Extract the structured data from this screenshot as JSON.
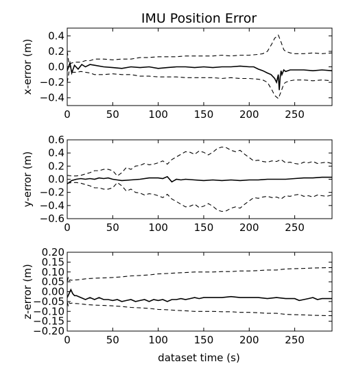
{
  "figure": {
    "title": "IMU Position Error",
    "xlabel": "dataset time (s)"
  },
  "chart_data": [
    {
      "type": "line",
      "title": "IMU Position Error",
      "ylabel": "x-error (m)",
      "xlabel": "",
      "xlim": [
        0,
        291
      ],
      "ylim": [
        -0.5,
        0.5
      ],
      "xticks": [
        0,
        50,
        100,
        150,
        200,
        250
      ],
      "yticks": [
        -0.4,
        -0.2,
        0.0,
        0.2,
        0.4
      ],
      "ytick_labels": [
        "−0.4",
        "−0.2",
        "0.0",
        "0.2",
        "0.4"
      ],
      "grid": false,
      "series": [
        {
          "style": "solid",
          "x": [
            0,
            3,
            5,
            8,
            12,
            16,
            20,
            25,
            30,
            40,
            50,
            60,
            70,
            80,
            90,
            100,
            110,
            120,
            130,
            140,
            150,
            160,
            170,
            180,
            190,
            200,
            205,
            210,
            215,
            220,
            224,
            228,
            230,
            232,
            233,
            234,
            235,
            236,
            238,
            240,
            245,
            250,
            260,
            270,
            280,
            291
          ],
          "y": [
            -0.05,
            0.05,
            -0.08,
            0.02,
            -0.03,
            0.03,
            0.0,
            0.03,
            0.02,
            0.0,
            -0.01,
            -0.02,
            0.0,
            -0.01,
            0.0,
            -0.02,
            -0.01,
            0.0,
            0.0,
            -0.01,
            0.0,
            -0.01,
            0.0,
            0.0,
            0.01,
            0.0,
            0.0,
            -0.03,
            -0.05,
            -0.08,
            -0.1,
            -0.15,
            -0.2,
            -0.1,
            -0.3,
            -0.14,
            -0.05,
            -0.1,
            -0.04,
            -0.06,
            -0.04,
            -0.04,
            -0.04,
            -0.05,
            -0.04,
            -0.05
          ]
        },
        {
          "style": "dashed",
          "x": [
            0,
            2,
            5,
            10,
            15,
            20,
            25,
            30,
            40,
            50,
            60,
            70,
            80,
            90,
            100,
            110,
            120,
            130,
            140,
            150,
            160,
            170,
            180,
            190,
            200,
            210,
            215,
            220,
            225,
            228,
            232,
            235,
            238,
            240,
            245,
            250,
            260,
            270,
            280,
            291
          ],
          "y": [
            0.2,
            0.03,
            0.05,
            0.06,
            0.06,
            0.08,
            0.08,
            0.1,
            0.1,
            0.09,
            0.1,
            0.1,
            0.12,
            0.12,
            0.13,
            0.13,
            0.13,
            0.14,
            0.14,
            0.14,
            0.14,
            0.15,
            0.14,
            0.15,
            0.15,
            0.16,
            0.17,
            0.2,
            0.3,
            0.37,
            0.41,
            0.32,
            0.22,
            0.2,
            0.18,
            0.17,
            0.17,
            0.18,
            0.17,
            0.18
          ]
        },
        {
          "style": "dashed",
          "x": [
            0,
            2,
            5,
            10,
            15,
            20,
            25,
            30,
            40,
            50,
            60,
            70,
            80,
            90,
            100,
            110,
            120,
            130,
            140,
            150,
            160,
            170,
            180,
            190,
            200,
            210,
            215,
            220,
            225,
            228,
            232,
            235,
            238,
            240,
            245,
            250,
            260,
            270,
            280,
            291
          ],
          "y": [
            -0.2,
            -0.06,
            -0.07,
            -0.07,
            -0.06,
            -0.07,
            -0.08,
            -0.1,
            -0.1,
            -0.09,
            -0.1,
            -0.1,
            -0.12,
            -0.12,
            -0.13,
            -0.13,
            -0.13,
            -0.14,
            -0.14,
            -0.14,
            -0.14,
            -0.15,
            -0.14,
            -0.15,
            -0.15,
            -0.16,
            -0.17,
            -0.2,
            -0.3,
            -0.37,
            -0.41,
            -0.32,
            -0.22,
            -0.2,
            -0.18,
            -0.17,
            -0.17,
            -0.18,
            -0.17,
            -0.18
          ]
        }
      ]
    },
    {
      "type": "line",
      "title": "",
      "ylabel": "y-error (m)",
      "xlabel": "",
      "xlim": [
        0,
        291
      ],
      "ylim": [
        -0.6,
        0.6
      ],
      "xticks": [
        0,
        50,
        100,
        150,
        200,
        250
      ],
      "yticks": [
        -0.6,
        -0.4,
        -0.2,
        0.0,
        0.2,
        0.4,
        0.6
      ],
      "ytick_labels": [
        "−0.6",
        "−0.4",
        "−0.2",
        "0.0",
        "0.2",
        "0.4",
        "0.6"
      ],
      "grid": false,
      "series": [
        {
          "style": "solid",
          "x": [
            0,
            5,
            10,
            15,
            20,
            25,
            30,
            35,
            40,
            45,
            50,
            55,
            60,
            70,
            80,
            90,
            100,
            105,
            110,
            115,
            120,
            125,
            130,
            140,
            150,
            160,
            170,
            180,
            190,
            200,
            210,
            220,
            230,
            240,
            250,
            260,
            270,
            280,
            291
          ],
          "y": [
            -0.07,
            -0.02,
            0.0,
            0.01,
            0.0,
            0.01,
            0.0,
            0.02,
            0.01,
            0.02,
            0.0,
            -0.01,
            -0.02,
            -0.01,
            0.0,
            0.02,
            0.02,
            0.01,
            0.04,
            -0.04,
            0.0,
            -0.01,
            0.0,
            -0.01,
            -0.02,
            -0.01,
            -0.02,
            -0.01,
            -0.02,
            -0.01,
            -0.01,
            0.0,
            0.0,
            0.0,
            0.01,
            0.02,
            0.02,
            0.03,
            0.03
          ]
        },
        {
          "style": "dashed",
          "x": [
            0,
            5,
            10,
            15,
            20,
            25,
            30,
            35,
            40,
            45,
            50,
            55,
            60,
            65,
            70,
            75,
            80,
            85,
            90,
            95,
            100,
            105,
            110,
            115,
            120,
            125,
            130,
            135,
            140,
            145,
            150,
            155,
            160,
            165,
            170,
            175,
            180,
            185,
            190,
            195,
            200,
            205,
            210,
            215,
            220,
            225,
            230,
            235,
            240,
            245,
            250,
            255,
            260,
            265,
            270,
            275,
            280,
            285,
            291
          ],
          "y": [
            0.06,
            0.05,
            0.05,
            0.06,
            0.08,
            0.1,
            0.13,
            0.13,
            0.15,
            0.15,
            0.13,
            0.05,
            0.1,
            0.18,
            0.15,
            0.2,
            0.21,
            0.24,
            0.22,
            0.23,
            0.25,
            0.28,
            0.23,
            0.3,
            0.34,
            0.38,
            0.42,
            0.41,
            0.38,
            0.43,
            0.41,
            0.37,
            0.41,
            0.47,
            0.49,
            0.48,
            0.44,
            0.42,
            0.44,
            0.38,
            0.33,
            0.28,
            0.29,
            0.27,
            0.26,
            0.28,
            0.27,
            0.3,
            0.25,
            0.26,
            0.24,
            0.23,
            0.26,
            0.25,
            0.27,
            0.24,
            0.25,
            0.26,
            0.24
          ]
        },
        {
          "style": "dashed",
          "x": [
            0,
            5,
            10,
            15,
            20,
            25,
            30,
            35,
            40,
            45,
            50,
            55,
            60,
            65,
            70,
            75,
            80,
            85,
            90,
            95,
            100,
            105,
            110,
            115,
            120,
            125,
            130,
            135,
            140,
            145,
            150,
            155,
            160,
            165,
            170,
            175,
            180,
            185,
            190,
            195,
            200,
            205,
            210,
            215,
            220,
            225,
            230,
            235,
            240,
            245,
            250,
            255,
            260,
            265,
            270,
            275,
            280,
            285,
            291
          ],
          "y": [
            -0.06,
            -0.05,
            -0.05,
            -0.06,
            -0.08,
            -0.1,
            -0.13,
            -0.13,
            -0.15,
            -0.15,
            -0.13,
            -0.05,
            -0.1,
            -0.18,
            -0.15,
            -0.2,
            -0.21,
            -0.24,
            -0.22,
            -0.23,
            -0.25,
            -0.28,
            -0.23,
            -0.3,
            -0.34,
            -0.38,
            -0.42,
            -0.41,
            -0.38,
            -0.43,
            -0.41,
            -0.37,
            -0.41,
            -0.47,
            -0.49,
            -0.48,
            -0.44,
            -0.42,
            -0.44,
            -0.38,
            -0.33,
            -0.28,
            -0.29,
            -0.27,
            -0.26,
            -0.28,
            -0.27,
            -0.3,
            -0.25,
            -0.26,
            -0.24,
            -0.23,
            -0.26,
            -0.25,
            -0.27,
            -0.24,
            -0.25,
            -0.26,
            -0.24
          ]
        }
      ]
    },
    {
      "type": "line",
      "title": "",
      "ylabel": "z-error (m)",
      "xlabel": "dataset time (s)",
      "xlim": [
        0,
        291
      ],
      "ylim": [
        -0.2,
        0.2
      ],
      "xticks": [
        0,
        50,
        100,
        150,
        200,
        250
      ],
      "yticks": [
        -0.2,
        -0.15,
        -0.1,
        -0.05,
        0.0,
        0.05,
        0.1,
        0.15,
        0.2
      ],
      "ytick_labels": [
        "−0.20",
        "−0.15",
        "−0.10",
        "−0.05",
        "0.00",
        "0.05",
        "0.10",
        "0.15",
        "0.20"
      ],
      "grid": false,
      "series": [
        {
          "style": "solid",
          "x": [
            0,
            2,
            4,
            6,
            8,
            10,
            15,
            20,
            25,
            30,
            35,
            40,
            45,
            50,
            55,
            60,
            65,
            70,
            75,
            80,
            85,
            90,
            95,
            100,
            105,
            110,
            115,
            120,
            125,
            130,
            135,
            140,
            145,
            150,
            160,
            170,
            180,
            190,
            200,
            210,
            220,
            230,
            240,
            250,
            255,
            260,
            265,
            270,
            275,
            280,
            291
          ],
          "y": [
            -0.03,
            -0.01,
            0.01,
            -0.01,
            -0.02,
            -0.02,
            -0.03,
            -0.04,
            -0.03,
            -0.04,
            -0.03,
            -0.04,
            -0.04,
            -0.045,
            -0.04,
            -0.05,
            -0.045,
            -0.04,
            -0.05,
            -0.045,
            -0.04,
            -0.05,
            -0.04,
            -0.045,
            -0.04,
            -0.05,
            -0.04,
            -0.04,
            -0.035,
            -0.04,
            -0.035,
            -0.03,
            -0.035,
            -0.03,
            -0.03,
            -0.03,
            -0.025,
            -0.03,
            -0.03,
            -0.03,
            -0.035,
            -0.03,
            -0.035,
            -0.035,
            -0.045,
            -0.04,
            -0.035,
            -0.03,
            -0.04,
            -0.035,
            -0.035
          ]
        },
        {
          "style": "dashed",
          "x": [
            0,
            1,
            2,
            3,
            5,
            8,
            10,
            15,
            20,
            30,
            40,
            50,
            60,
            70,
            80,
            90,
            100,
            110,
            120,
            130,
            140,
            150,
            160,
            170,
            180,
            190,
            200,
            210,
            220,
            230,
            240,
            250,
            260,
            270,
            280,
            291
          ],
          "y": [
            0.05,
            0.07,
            0.055,
            0.06,
            0.058,
            0.06,
            0.06,
            0.062,
            0.065,
            0.068,
            0.07,
            0.072,
            0.075,
            0.08,
            0.082,
            0.085,
            0.09,
            0.092,
            0.095,
            0.097,
            0.1,
            0.1,
            0.1,
            0.102,
            0.102,
            0.105,
            0.105,
            0.107,
            0.11,
            0.11,
            0.115,
            0.117,
            0.118,
            0.12,
            0.121,
            0.122
          ]
        },
        {
          "style": "dashed",
          "x": [
            0,
            1,
            2,
            3,
            5,
            8,
            10,
            15,
            20,
            30,
            40,
            50,
            60,
            70,
            80,
            90,
            100,
            110,
            120,
            130,
            140,
            150,
            160,
            170,
            180,
            190,
            200,
            210,
            220,
            230,
            240,
            250,
            260,
            270,
            280,
            291
          ],
          "y": [
            -0.05,
            -0.07,
            -0.055,
            -0.06,
            -0.058,
            -0.06,
            -0.06,
            -0.062,
            -0.065,
            -0.068,
            -0.07,
            -0.072,
            -0.075,
            -0.08,
            -0.082,
            -0.085,
            -0.09,
            -0.092,
            -0.095,
            -0.097,
            -0.1,
            -0.1,
            -0.1,
            -0.102,
            -0.102,
            -0.105,
            -0.105,
            -0.107,
            -0.11,
            -0.11,
            -0.115,
            -0.117,
            -0.118,
            -0.12,
            -0.121,
            -0.122
          ]
        }
      ]
    }
  ]
}
